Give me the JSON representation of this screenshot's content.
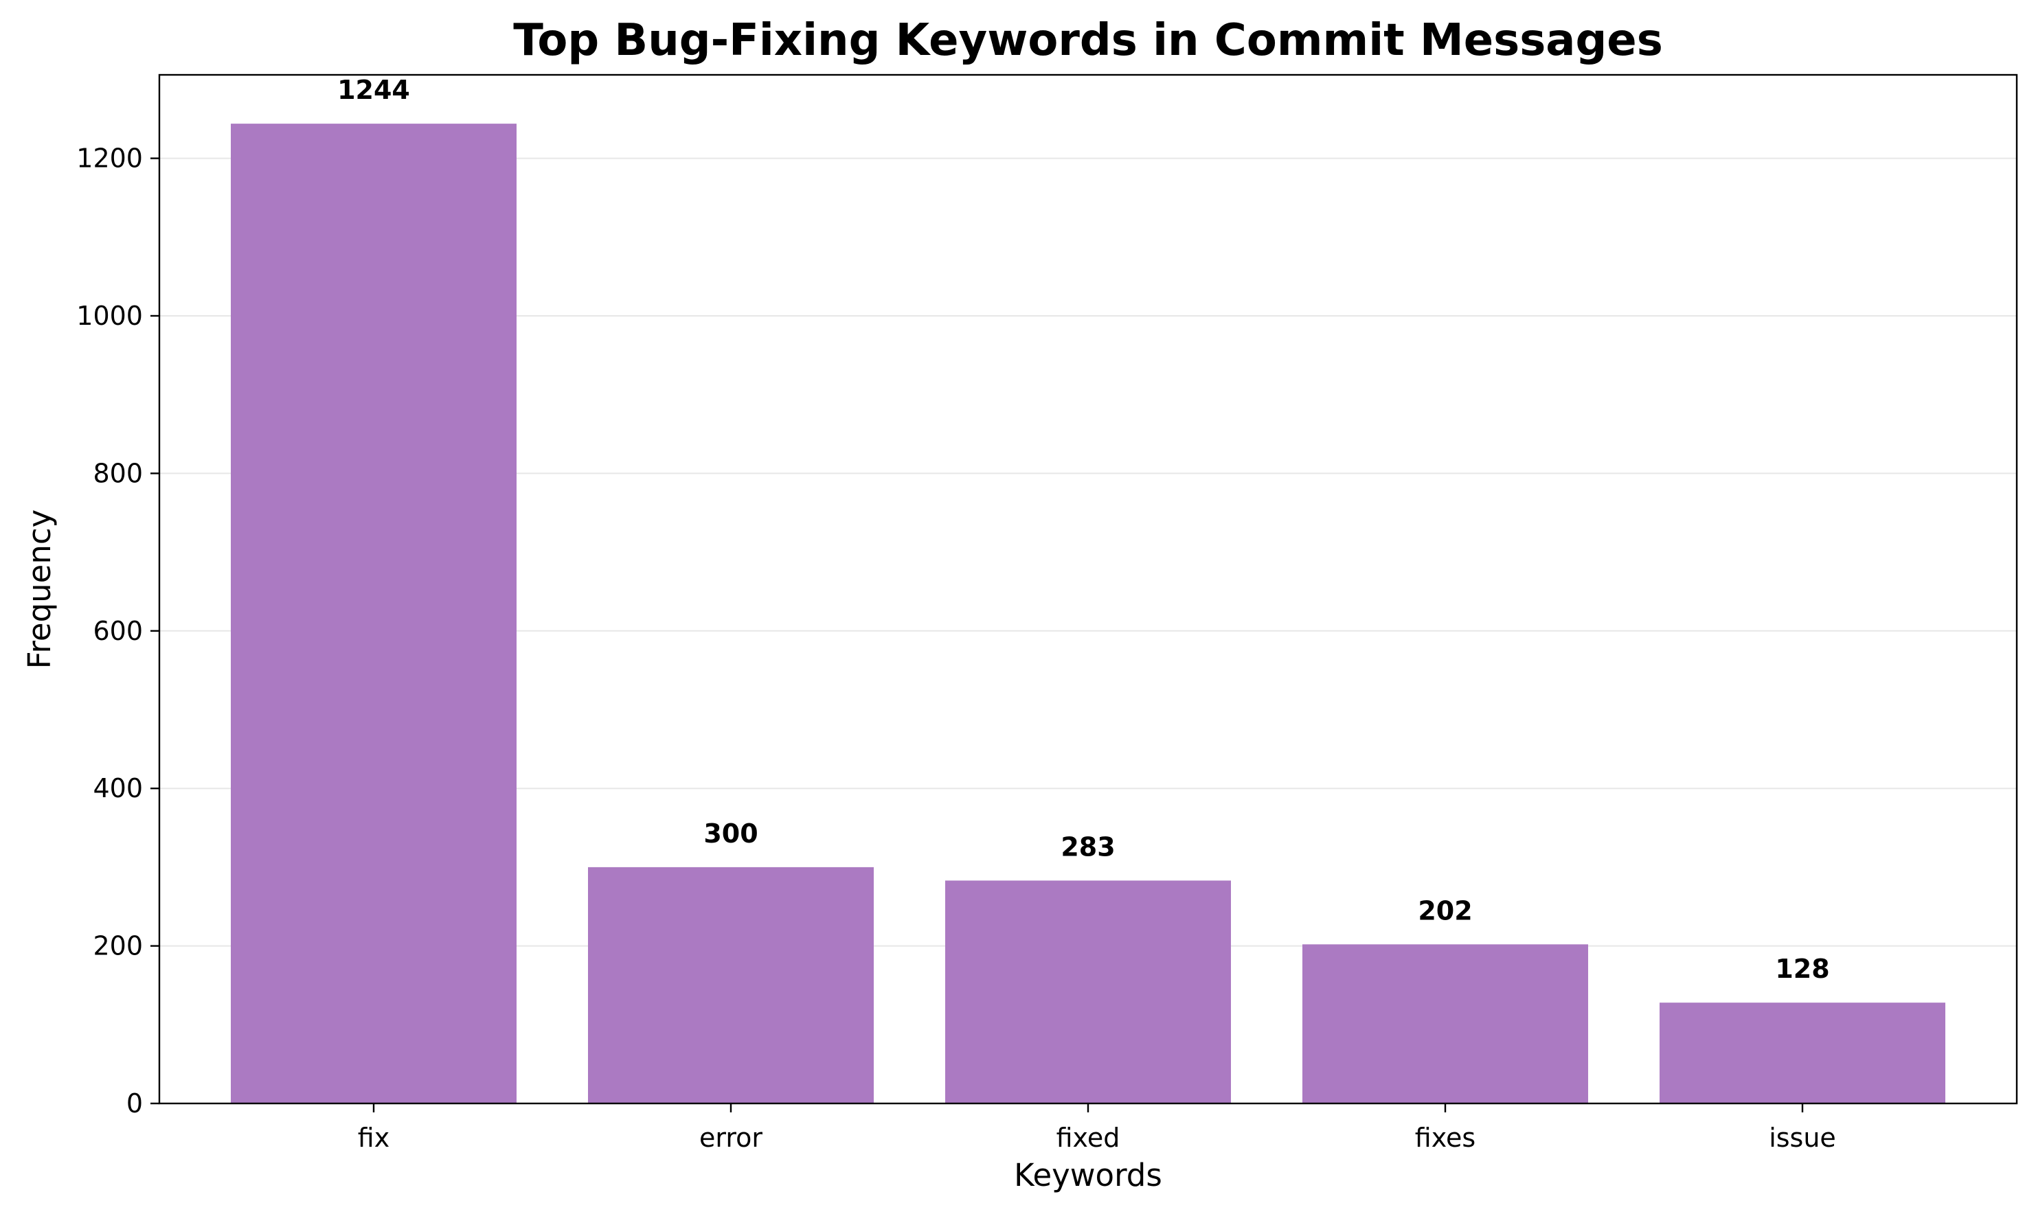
{
  "chart_data": {
    "type": "bar",
    "title": "Top Bug-Fixing Keywords in Commit Messages",
    "xlabel": "Keywords",
    "ylabel": "Frequency",
    "categories": [
      "fix",
      "error",
      "fixed",
      "fixes",
      "issue"
    ],
    "values": [
      1244,
      300,
      283,
      202,
      128
    ],
    "ylim": [
      0,
      1306
    ],
    "yticks": [
      0,
      200,
      400,
      600,
      800,
      1000,
      1200
    ],
    "grid": "horizontal",
    "legend": "none",
    "bar_color": "#ab7ac2",
    "data_labels": true
  }
}
